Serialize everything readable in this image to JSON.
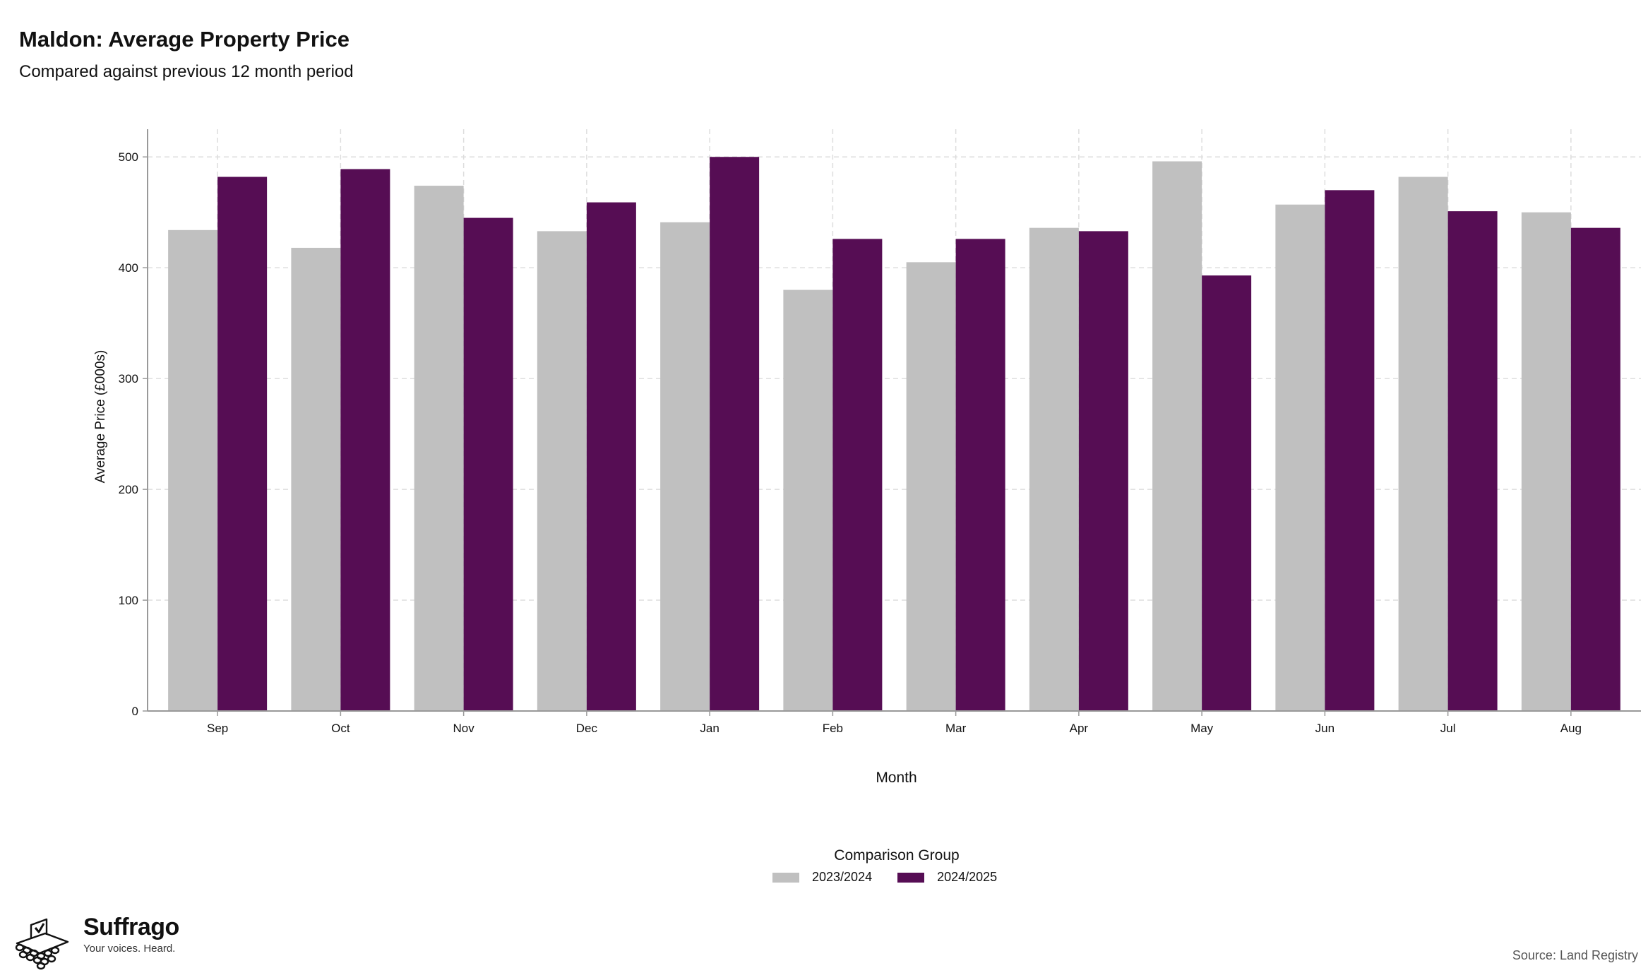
{
  "title": "Maldon: Average Property Price",
  "subtitle": "Compared against previous 12 month period",
  "source": "Source: Land Registry",
  "brand": {
    "name": "Suffrago",
    "tagline": "Your voices. Heard.",
    "icon": "ballot-box-icon"
  },
  "legend": {
    "title": "Comparison Group"
  },
  "colors": {
    "series_2023_2024": "#c0c0c0",
    "series_2024_2025": "#560d54",
    "grid": "#dddddd",
    "axis": "#999999"
  },
  "chart_data": {
    "type": "bar",
    "xlabel": "Month",
    "ylabel": "Average Price (£000s)",
    "ylim": [
      0,
      525
    ],
    "yticks": [
      0,
      100,
      200,
      300,
      400,
      500
    ],
    "grid": true,
    "legend_position": "bottom",
    "categories": [
      "Sep",
      "Oct",
      "Nov",
      "Dec",
      "Jan",
      "Feb",
      "Mar",
      "Apr",
      "May",
      "Jun",
      "Jul",
      "Aug"
    ],
    "series": [
      {
        "name": "2023/2024",
        "values": [
          434,
          418,
          474,
          433,
          441,
          380,
          405,
          436,
          496,
          457,
          482,
          450
        ]
      },
      {
        "name": "2024/2025",
        "values": [
          482,
          489,
          445,
          459,
          500,
          426,
          426,
          433,
          393,
          470,
          451,
          436
        ]
      }
    ]
  }
}
